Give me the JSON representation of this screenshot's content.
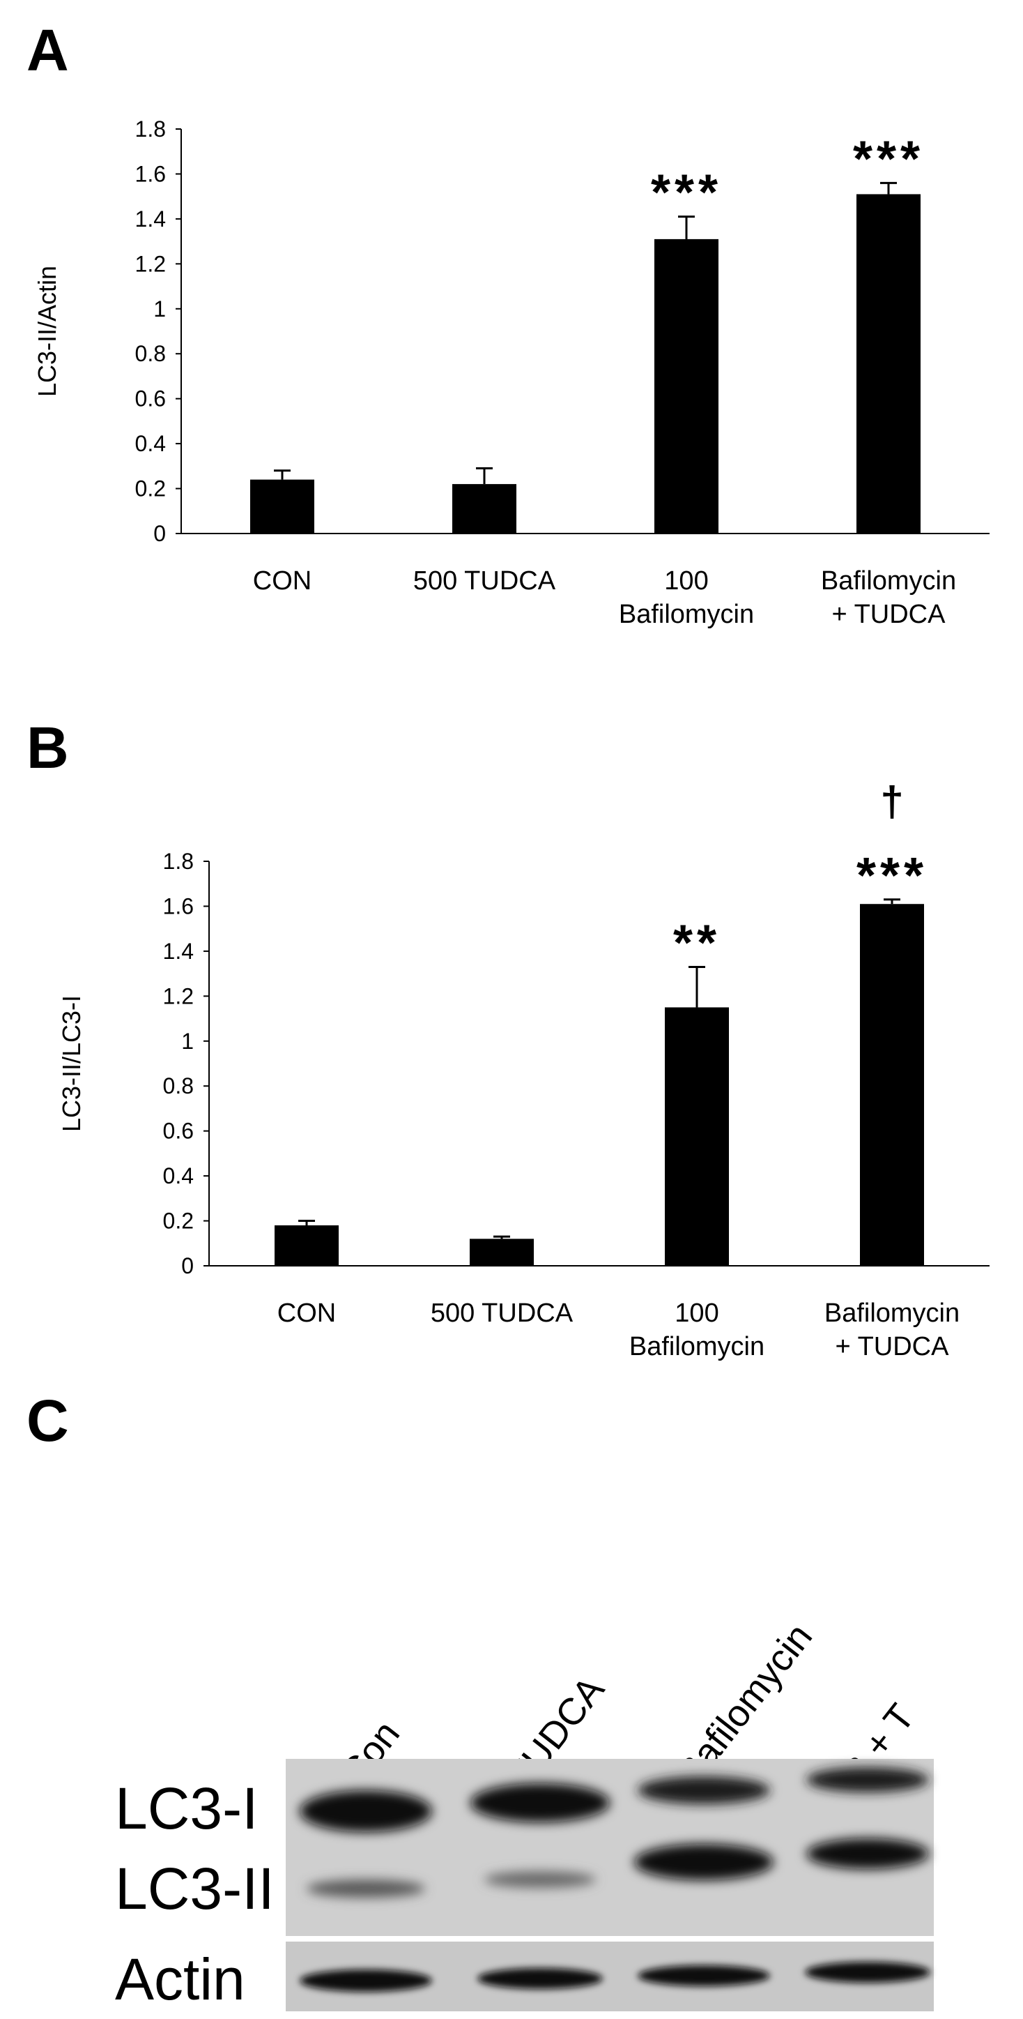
{
  "panels": {
    "a_label": "A",
    "b_label": "B",
    "c_label": "C"
  },
  "chart_data": [
    {
      "id": "A",
      "type": "bar",
      "categories": [
        "CON",
        "500 TUDCA",
        "100 Bafilomycin",
        "Bafilomycin + TUDCA"
      ],
      "category_lines": [
        [
          "CON"
        ],
        [
          "500 TUDCA"
        ],
        [
          "100",
          "Bafilomycin"
        ],
        [
          "Bafilomycin",
          "+ TUDCA"
        ]
      ],
      "values": [
        0.24,
        0.22,
        1.31,
        1.51
      ],
      "errors": [
        0.04,
        0.07,
        0.1,
        0.05
      ],
      "significance": [
        "",
        "",
        "***",
        "***"
      ],
      "extra_marks": [
        "",
        "",
        "",
        ""
      ],
      "ylabel": "LC3-II/Actin",
      "xlabel": "",
      "title": "",
      "ylim": [
        0,
        1.8
      ],
      "yticks": [
        "0",
        "0.2",
        "0.4",
        "0.6",
        "0.8",
        "1",
        "1.2",
        "1.4",
        "1.6",
        "1.8"
      ],
      "grid": false,
      "bar_color": "#000000"
    },
    {
      "id": "B",
      "type": "bar",
      "categories": [
        "CON",
        "500 TUDCA",
        "100 Bafilomycin",
        "Bafilomycin + TUDCA"
      ],
      "category_lines": [
        [
          "CON"
        ],
        [
          "500 TUDCA"
        ],
        [
          "100",
          "Bafilomycin"
        ],
        [
          "Bafilomycin",
          "+ TUDCA"
        ]
      ],
      "values": [
        0.18,
        0.12,
        1.15,
        1.61
      ],
      "errors": [
        0.02,
        0.01,
        0.18,
        0.02
      ],
      "significance": [
        "",
        "",
        "**",
        "***"
      ],
      "extra_marks": [
        "",
        "",
        "",
        "†"
      ],
      "ylabel": "LC3-II/LC3-I",
      "xlabel": "",
      "title": "",
      "ylim": [
        0,
        1.8
      ],
      "yticks": [
        "0",
        "0.2",
        "0.4",
        "0.6",
        "0.8",
        "1",
        "1.2",
        "1.4",
        "1.6",
        "1.8"
      ],
      "grid": false,
      "bar_color": "#000000"
    }
  ],
  "blot": {
    "lanes": [
      "Con",
      "TUDCA",
      "Bafilomycin",
      "B + T"
    ],
    "bands": [
      "LC3-I",
      "LC3-II",
      "Actin"
    ]
  }
}
